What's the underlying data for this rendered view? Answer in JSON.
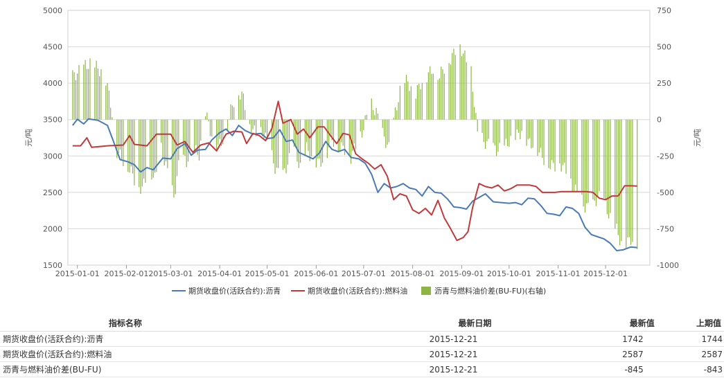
{
  "chart_data": {
    "type": "line",
    "x_labels": [
      "2015-01-01",
      "2015-02-01",
      "2015-03-01",
      "2015-04-01",
      "2015-05-01",
      "2015-06-01",
      "2015-07-01",
      "2015-08-01",
      "2015-09-01",
      "2015-10-01",
      "2015-11-01",
      "2015-12-01"
    ],
    "y_left": {
      "ticks": [
        1500,
        2000,
        2500,
        3000,
        3500,
        4000,
        4500,
        5000
      ],
      "min": 1500,
      "max": 5000,
      "unit": "元/吨"
    },
    "y_right": {
      "ticks": [
        -1000,
        -750,
        -500,
        -250,
        0,
        250,
        500,
        750
      ],
      "min": -1000,
      "max": 750,
      "unit": "元/吨"
    },
    "grid": true,
    "legend_position": "bottom",
    "series": [
      {
        "name": "期货收盘价(活跃合约):沥青",
        "type": "line",
        "axis": "left",
        "color": "#4a7ab5",
        "points": [
          [
            "2014-12-29",
            3420
          ],
          [
            "2015-01-01",
            3505
          ],
          [
            "2015-01-05",
            3440
          ],
          [
            "2015-01-08",
            3510
          ],
          [
            "2015-01-14",
            3490
          ],
          [
            "2015-01-20",
            3420
          ],
          [
            "2015-01-24",
            3190
          ],
          [
            "2015-01-28",
            2950
          ],
          [
            "2015-02-02",
            2920
          ],
          [
            "2015-02-06",
            2880
          ],
          [
            "2015-02-10",
            2780
          ],
          [
            "2015-02-14",
            2840
          ],
          [
            "2015-02-18",
            2810
          ],
          [
            "2015-02-24",
            2970
          ],
          [
            "2015-03-01",
            2960
          ],
          [
            "2015-03-05",
            3100
          ],
          [
            "2015-03-10",
            3170
          ],
          [
            "2015-03-14",
            3010
          ],
          [
            "2015-03-18",
            3080
          ],
          [
            "2015-03-23",
            3090
          ],
          [
            "2015-03-27",
            3220
          ],
          [
            "2015-04-01",
            3320
          ],
          [
            "2015-04-05",
            3370
          ],
          [
            "2015-04-09",
            3280
          ],
          [
            "2015-04-13",
            3420
          ],
          [
            "2015-04-17",
            3350
          ],
          [
            "2015-04-22",
            3300
          ],
          [
            "2015-04-27",
            3310
          ],
          [
            "2015-05-01",
            3240
          ],
          [
            "2015-05-05",
            3250
          ],
          [
            "2015-05-09",
            3360
          ],
          [
            "2015-05-13",
            3200
          ],
          [
            "2015-05-17",
            3220
          ],
          [
            "2015-05-21",
            3050
          ],
          [
            "2015-05-26",
            3000
          ],
          [
            "2015-05-30",
            2960
          ],
          [
            "2015-06-03",
            3040
          ],
          [
            "2015-06-07",
            3200
          ],
          [
            "2015-06-11",
            3090
          ],
          [
            "2015-06-15",
            3060
          ],
          [
            "2015-06-19",
            3090
          ],
          [
            "2015-06-23",
            2980
          ],
          [
            "2015-06-28",
            2960
          ],
          [
            "2015-07-02",
            2900
          ],
          [
            "2015-07-06",
            2750
          ],
          [
            "2015-07-10",
            2500
          ],
          [
            "2015-07-14",
            2620
          ],
          [
            "2015-07-18",
            2560
          ],
          [
            "2015-07-22",
            2580
          ],
          [
            "2015-07-26",
            2620
          ],
          [
            "2015-07-30",
            2560
          ],
          [
            "2015-08-03",
            2540
          ],
          [
            "2015-08-07",
            2450
          ],
          [
            "2015-08-11",
            2580
          ],
          [
            "2015-08-15",
            2500
          ],
          [
            "2015-08-19",
            2490
          ],
          [
            "2015-08-23",
            2410
          ],
          [
            "2015-08-27",
            2300
          ],
          [
            "2015-08-31",
            2290
          ],
          [
            "2015-09-04",
            2270
          ],
          [
            "2015-09-08",
            2380
          ],
          [
            "2015-09-12",
            2430
          ],
          [
            "2015-09-16",
            2480
          ],
          [
            "2015-09-21",
            2370
          ],
          [
            "2015-09-26",
            2360
          ],
          [
            "2015-10-01",
            2350
          ],
          [
            "2015-10-05",
            2360
          ],
          [
            "2015-10-09",
            2330
          ],
          [
            "2015-10-13",
            2420
          ],
          [
            "2015-10-17",
            2410
          ],
          [
            "2015-10-21",
            2320
          ],
          [
            "2015-10-25",
            2210
          ],
          [
            "2015-10-29",
            2200
          ],
          [
            "2015-11-02",
            2180
          ],
          [
            "2015-11-06",
            2300
          ],
          [
            "2015-11-10",
            2280
          ],
          [
            "2015-11-14",
            2210
          ],
          [
            "2015-11-18",
            2020
          ],
          [
            "2015-11-22",
            1920
          ],
          [
            "2015-11-26",
            1890
          ],
          [
            "2015-11-30",
            1860
          ],
          [
            "2015-12-04",
            1800
          ],
          [
            "2015-12-08",
            1700
          ],
          [
            "2015-12-12",
            1710
          ],
          [
            "2015-12-17",
            1750
          ],
          [
            "2015-12-21",
            1742
          ]
        ]
      },
      {
        "name": "期货收盘价(活跃合约):燃料油",
        "type": "line",
        "axis": "left",
        "color": "#c0393b",
        "points": [
          [
            "2014-12-29",
            3140
          ],
          [
            "2015-01-03",
            3140
          ],
          [
            "2015-01-07",
            3250
          ],
          [
            "2015-01-10",
            3120
          ],
          [
            "2015-01-20",
            3140
          ],
          [
            "2015-01-30",
            3150
          ],
          [
            "2015-02-03",
            3280
          ],
          [
            "2015-02-06",
            3160
          ],
          [
            "2015-02-14",
            3140
          ],
          [
            "2015-02-20",
            3300
          ],
          [
            "2015-03-01",
            3300
          ],
          [
            "2015-03-05",
            3150
          ],
          [
            "2015-03-10",
            3200
          ],
          [
            "2015-03-15",
            3050
          ],
          [
            "2015-03-20",
            3150
          ],
          [
            "2015-03-25",
            3180
          ],
          [
            "2015-03-30",
            3070
          ],
          [
            "2015-04-05",
            3300
          ],
          [
            "2015-04-10",
            3340
          ],
          [
            "2015-04-15",
            3330
          ],
          [
            "2015-04-18",
            3170
          ],
          [
            "2015-04-22",
            3310
          ],
          [
            "2015-04-26",
            3280
          ],
          [
            "2015-04-30",
            3210
          ],
          [
            "2015-05-04",
            3380
          ],
          [
            "2015-05-08",
            3750
          ],
          [
            "2015-05-11",
            3450
          ],
          [
            "2015-05-16",
            3500
          ],
          [
            "2015-05-20",
            3300
          ],
          [
            "2015-05-24",
            3370
          ],
          [
            "2015-05-28",
            3250
          ],
          [
            "2015-06-02",
            3400
          ],
          [
            "2015-06-06",
            3400
          ],
          [
            "2015-06-10",
            3280
          ],
          [
            "2015-06-14",
            3170
          ],
          [
            "2015-06-18",
            3310
          ],
          [
            "2015-06-22",
            3290
          ],
          [
            "2015-06-26",
            3030
          ],
          [
            "2015-06-30",
            2960
          ],
          [
            "2015-07-04",
            2900
          ],
          [
            "2015-07-08",
            2820
          ],
          [
            "2015-07-12",
            2880
          ],
          [
            "2015-07-16",
            2720
          ],
          [
            "2015-07-20",
            2400
          ],
          [
            "2015-07-24",
            2480
          ],
          [
            "2015-07-28",
            2450
          ],
          [
            "2015-08-01",
            2260
          ],
          [
            "2015-08-05",
            2210
          ],
          [
            "2015-08-09",
            2280
          ],
          [
            "2015-08-13",
            2190
          ],
          [
            "2015-08-17",
            2390
          ],
          [
            "2015-08-21",
            2150
          ],
          [
            "2015-08-25",
            2000
          ],
          [
            "2015-08-29",
            1840
          ],
          [
            "2015-09-02",
            1880
          ],
          [
            "2015-09-05",
            1960
          ],
          [
            "2015-09-08",
            2300
          ],
          [
            "2015-09-12",
            2620
          ],
          [
            "2015-09-16",
            2580
          ],
          [
            "2015-09-20",
            2560
          ],
          [
            "2015-09-24",
            2600
          ],
          [
            "2015-09-28",
            2520
          ],
          [
            "2015-10-02",
            2550
          ],
          [
            "2015-10-06",
            2600
          ],
          [
            "2015-10-10",
            2600
          ],
          [
            "2015-10-14",
            2600
          ],
          [
            "2015-10-18",
            2580
          ],
          [
            "2015-10-22",
            2500
          ],
          [
            "2015-10-26",
            2500
          ],
          [
            "2015-10-30",
            2500
          ],
          [
            "2015-11-03",
            2510
          ],
          [
            "2015-11-07",
            2510
          ],
          [
            "2015-11-11",
            2510
          ],
          [
            "2015-11-15",
            2510
          ],
          [
            "2015-11-19",
            2510
          ],
          [
            "2015-11-23",
            2500
          ],
          [
            "2015-11-27",
            2420
          ],
          [
            "2015-12-01",
            2400
          ],
          [
            "2015-12-05",
            2450
          ],
          [
            "2015-12-09",
            2450
          ],
          [
            "2015-12-13",
            2590
          ],
          [
            "2015-12-17",
            2590
          ],
          [
            "2015-12-21",
            2587
          ]
        ]
      },
      {
        "name": "沥青与燃料油价差(BU-FU)(右轴)",
        "type": "bar",
        "axis": "right",
        "color": "#8db544",
        "points": [
          [
            "2014-12-29",
            300
          ],
          [
            "2015-01-02",
            330
          ],
          [
            "2015-01-06",
            370
          ],
          [
            "2015-01-10",
            390
          ],
          [
            "2015-01-14",
            350
          ],
          [
            "2015-01-18",
            320
          ],
          [
            "2015-01-22",
            120
          ],
          [
            "2015-01-26",
            -220
          ],
          [
            "2015-01-30",
            -280
          ],
          [
            "2015-02-03",
            -340
          ],
          [
            "2015-02-07",
            -430
          ],
          [
            "2015-02-11",
            -480
          ],
          [
            "2015-02-15",
            -330
          ],
          [
            "2015-02-19",
            -410
          ],
          [
            "2015-02-23",
            -200
          ],
          [
            "2015-02-27",
            -360
          ],
          [
            "2015-03-03",
            -540
          ],
          [
            "2015-03-07",
            -250
          ],
          [
            "2015-03-11",
            -290
          ],
          [
            "2015-03-15",
            -200
          ],
          [
            "2015-03-19",
            -240
          ],
          [
            "2015-03-23",
            50
          ],
          [
            "2015-03-27",
            -110
          ],
          [
            "2015-03-31",
            -190
          ],
          [
            "2015-04-04",
            -120
          ],
          [
            "2015-04-08",
            60
          ],
          [
            "2015-04-12",
            200
          ],
          [
            "2015-04-16",
            150
          ],
          [
            "2015-04-20",
            -40
          ],
          [
            "2015-04-24",
            -100
          ],
          [
            "2015-04-28",
            -80
          ],
          [
            "2015-05-02",
            -180
          ],
          [
            "2015-05-06",
            -330
          ],
          [
            "2015-05-10",
            -410
          ],
          [
            "2015-05-14",
            -300
          ],
          [
            "2015-05-18",
            -200
          ],
          [
            "2015-05-22",
            -330
          ],
          [
            "2015-05-26",
            -200
          ],
          [
            "2015-05-30",
            -280
          ],
          [
            "2015-06-03",
            -300
          ],
          [
            "2015-06-07",
            -250
          ],
          [
            "2015-06-11",
            -130
          ],
          [
            "2015-06-15",
            -190
          ],
          [
            "2015-06-19",
            -200
          ],
          [
            "2015-06-23",
            -260
          ],
          [
            "2015-06-27",
            -150
          ],
          [
            "2015-07-01",
            -60
          ],
          [
            "2015-07-05",
            120
          ],
          [
            "2015-07-09",
            50
          ],
          [
            "2015-07-13",
            -100
          ],
          [
            "2015-07-17",
            -200
          ],
          [
            "2015-07-21",
            50
          ],
          [
            "2015-07-25",
            240
          ],
          [
            "2015-07-29",
            270
          ],
          [
            "2015-08-02",
            150
          ],
          [
            "2015-08-06",
            250
          ],
          [
            "2015-08-10",
            300
          ],
          [
            "2015-08-14",
            350
          ],
          [
            "2015-08-18",
            300
          ],
          [
            "2015-08-22",
            380
          ],
          [
            "2015-08-26",
            430
          ],
          [
            "2015-08-30",
            530
          ],
          [
            "2015-09-03",
            430
          ],
          [
            "2015-09-07",
            330
          ],
          [
            "2015-09-11",
            -100
          ],
          [
            "2015-09-15",
            -150
          ],
          [
            "2015-09-19",
            -180
          ],
          [
            "2015-09-23",
            -210
          ],
          [
            "2015-09-27",
            -200
          ],
          [
            "2015-10-01",
            -150
          ],
          [
            "2015-10-05",
            -120
          ],
          [
            "2015-10-09",
            -80
          ],
          [
            "2015-10-13",
            -160
          ],
          [
            "2015-10-17",
            -170
          ],
          [
            "2015-10-21",
            -240
          ],
          [
            "2015-10-25",
            -300
          ],
          [
            "2015-10-29",
            -320
          ],
          [
            "2015-11-02",
            -300
          ],
          [
            "2015-11-06",
            -350
          ],
          [
            "2015-11-10",
            -460
          ],
          [
            "2015-11-14",
            -520
          ],
          [
            "2015-11-18",
            -600
          ],
          [
            "2015-11-22",
            -610
          ],
          [
            "2015-11-26",
            -530
          ],
          [
            "2015-11-30",
            -560
          ],
          [
            "2015-12-04",
            -680
          ],
          [
            "2015-12-08",
            -760
          ],
          [
            "2015-12-12",
            -880
          ],
          [
            "2015-12-17",
            -820
          ],
          [
            "2015-12-21",
            -845
          ]
        ]
      }
    ]
  },
  "table": {
    "headers": [
      "指标名称",
      "最新日期",
      "最新值",
      "上期值"
    ],
    "rows": [
      [
        "期货收盘价(活跃合约):沥青",
        "2015-12-21",
        "1742",
        "1744"
      ],
      [
        "期货收盘价(活跃合约):燃料油",
        "2015-12-21",
        "2587",
        "2587"
      ],
      [
        "沥青与燃料油价差(BU-FU)",
        "2015-12-21",
        "-845",
        "-843"
      ]
    ]
  }
}
